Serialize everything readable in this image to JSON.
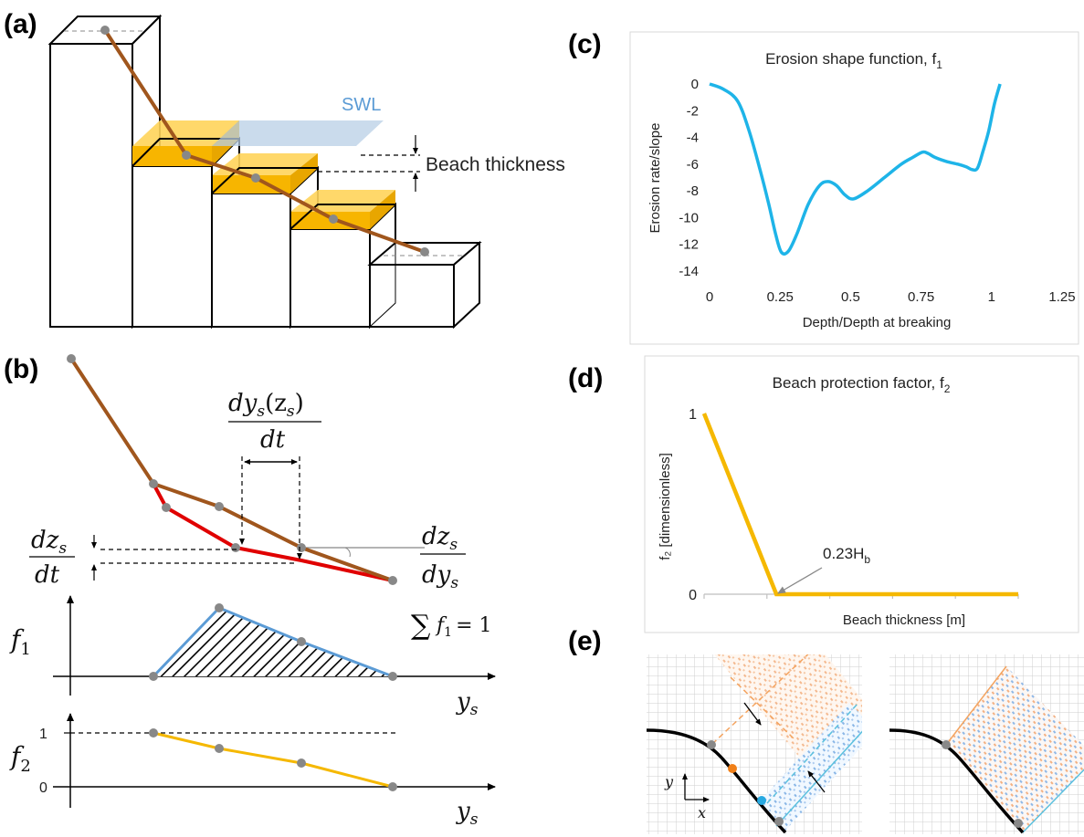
{
  "panels": {
    "a": {
      "label": "(a)",
      "swl": "SWL",
      "beach_thickness": "Beach thickness"
    },
    "b": {
      "label": "(b)",
      "dys_num": "dy",
      "dys_sub": "s",
      "dys_arg_open": "(z",
      "dys_arg_sub": "s",
      "dys_arg_close": ")",
      "dys_den": "dt",
      "dzs_num": "dz",
      "dzs_sub": "s",
      "dzs_den": "dt",
      "dzdy_num": "dz",
      "dzdy_num_sub": "s",
      "dzdy_den": "dy",
      "dzdy_den_sub": "s",
      "f1": "f",
      "f1_sub": "1",
      "sum": "∑",
      "sum_f": "f",
      "sum_sub": "1",
      "sum_eq": "= 1",
      "ys": "y",
      "ys_sub": "s",
      "f2": "f",
      "f2_sub": "2",
      "tick1": "1",
      "tick0": "0"
    },
    "c": {
      "label": "(c)"
    },
    "d": {
      "label": "(d)"
    },
    "e": {
      "label": "(e)",
      "y_axis": "y",
      "x_axis": "x"
    }
  },
  "chart_data": [
    {
      "type": "line",
      "title": "Erosion shape function, f",
      "title_sub": "1",
      "xlabel": "Depth/Depth at breaking",
      "ylabel": "Erosion rate/slope",
      "xlim": [
        0,
        1.25
      ],
      "ylim": [
        -14,
        0
      ],
      "xticks": [
        "0",
        "0.25",
        "0.5",
        "0.75",
        "1",
        "1.25"
      ],
      "yticks": [
        "0",
        "-2",
        "-4",
        "-6",
        "-8",
        "-10",
        "-12",
        "-14"
      ],
      "color": "#1eb4e8",
      "grid": false,
      "x": [
        0,
        0.05,
        0.1,
        0.14,
        0.18,
        0.21,
        0.235,
        0.255,
        0.28,
        0.31,
        0.35,
        0.39,
        0.42,
        0.45,
        0.48,
        0.51,
        0.56,
        0.62,
        0.68,
        0.72,
        0.755,
        0.775,
        0.8,
        0.84,
        0.88,
        0.91,
        0.93,
        0.95,
        0.97,
        0.99,
        1.01,
        1.03
      ],
      "y": [
        0,
        -0.4,
        -1.3,
        -3.5,
        -6.5,
        -9.0,
        -11.3,
        -12.6,
        -12.5,
        -11.2,
        -9.0,
        -7.6,
        -7.3,
        -7.6,
        -8.3,
        -8.6,
        -8.0,
        -7.0,
        -6.0,
        -5.5,
        -5.1,
        -5.2,
        -5.5,
        -5.8,
        -6.0,
        -6.2,
        -6.4,
        -6.3,
        -5.0,
        -3.5,
        -1.5,
        0
      ]
    },
    {
      "type": "line",
      "title": "Beach protection factor, f",
      "title_sub": "2",
      "xlabel": "Beach thickness [m]",
      "ylabel": "f₂ [dimensionless]",
      "yticks": [
        "0",
        "1"
      ],
      "ylim": [
        0,
        1
      ],
      "xlim": [
        0,
        1
      ],
      "color": "#f5b800",
      "grid": false,
      "x": [
        0,
        0.23,
        1
      ],
      "y": [
        1,
        0,
        0
      ],
      "annotation": "0.23H",
      "annotation_sub": "b"
    }
  ]
}
